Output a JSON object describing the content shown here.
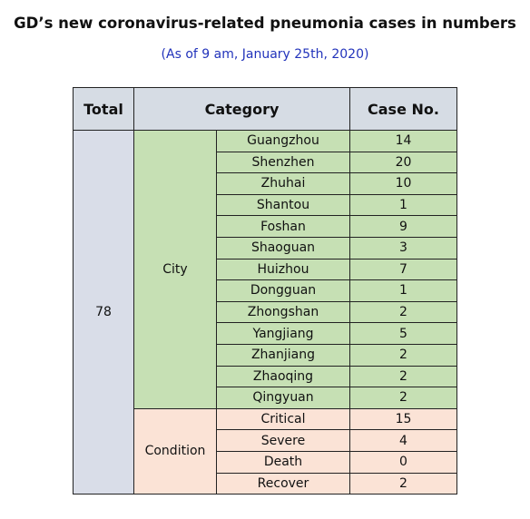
{
  "title": "GD’s new coronavirus-related pneumonia cases in numbers",
  "subtitle": "(As of 9 am, January 25th, 2020)",
  "table": {
    "header": [
      "Total",
      "Category",
      "Case No."
    ],
    "total": "78",
    "groups": [
      {
        "label": "City",
        "rows": [
          [
            "Guangzhou",
            "14"
          ],
          [
            "Shenzhen",
            "20"
          ],
          [
            "Zhuhai",
            "10"
          ],
          [
            "Shantou",
            "1"
          ],
          [
            "Foshan",
            "9"
          ],
          [
            "Shaoguan",
            "3"
          ],
          [
            "Huizhou",
            "7"
          ],
          [
            "Dongguan",
            "1"
          ],
          [
            "Zhongshan",
            "2"
          ],
          [
            "Yangjiang",
            "5"
          ],
          [
            "Zhanjiang",
            "2"
          ],
          [
            "Zhaoqing",
            "2"
          ],
          [
            "Qingyuan",
            "2"
          ]
        ]
      },
      {
        "label": "Condition",
        "rows": [
          [
            "Critical",
            "15"
          ],
          [
            "Severe",
            "4"
          ],
          [
            "Death",
            "0"
          ],
          [
            "Recover",
            "2"
          ]
        ]
      }
    ]
  }
}
